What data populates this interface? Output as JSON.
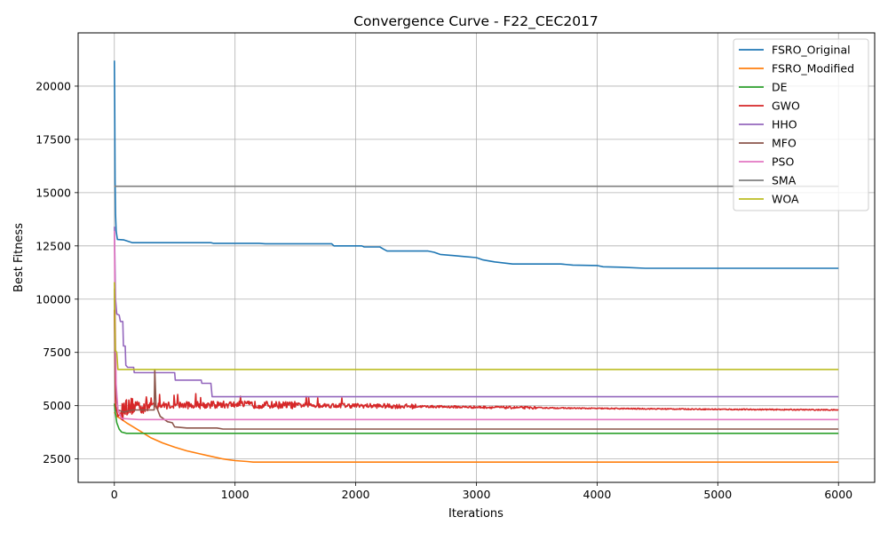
{
  "chart_data": {
    "type": "line",
    "title": "Convergence Curve - F22_CEC2017",
    "xlabel": "Iterations",
    "ylabel": "Best Fitness",
    "xlim": [
      -300,
      6300
    ],
    "ylim": [
      1400,
      22500
    ],
    "xticks": [
      0,
      1000,
      2000,
      3000,
      4000,
      5000,
      6000
    ],
    "yticks": [
      2500,
      5000,
      7500,
      10000,
      12500,
      15000,
      17500,
      20000
    ],
    "grid": true,
    "legend_position": "top-right",
    "series": [
      {
        "name": "FSRO_Original",
        "color": "#1f77b4",
        "noise": 0,
        "points": [
          [
            0,
            21200
          ],
          [
            3,
            19000
          ],
          [
            6,
            15500
          ],
          [
            10,
            14000
          ],
          [
            15,
            13200
          ],
          [
            25,
            12800
          ],
          [
            80,
            12780
          ],
          [
            150,
            12650
          ],
          [
            800,
            12650
          ],
          [
            820,
            12620
          ],
          [
            1200,
            12620
          ],
          [
            1250,
            12600
          ],
          [
            1800,
            12600
          ],
          [
            1820,
            12500
          ],
          [
            2050,
            12500
          ],
          [
            2070,
            12450
          ],
          [
            2200,
            12450
          ],
          [
            2230,
            12350
          ],
          [
            2260,
            12260
          ],
          [
            2600,
            12260
          ],
          [
            2650,
            12200
          ],
          [
            2700,
            12100
          ],
          [
            2800,
            12050
          ],
          [
            2900,
            12000
          ],
          [
            3000,
            11950
          ],
          [
            3050,
            11850
          ],
          [
            3150,
            11750
          ],
          [
            3300,
            11650
          ],
          [
            3700,
            11650
          ],
          [
            3800,
            11600
          ],
          [
            4000,
            11580
          ],
          [
            4050,
            11520
          ],
          [
            4200,
            11500
          ],
          [
            4400,
            11450
          ],
          [
            6000,
            11450
          ]
        ]
      },
      {
        "name": "FSRO_Modified",
        "color": "#ff7f0e",
        "noise": 0,
        "points": [
          [
            0,
            4700
          ],
          [
            20,
            4500
          ],
          [
            50,
            4400
          ],
          [
            100,
            4200
          ],
          [
            200,
            3850
          ],
          [
            300,
            3500
          ],
          [
            400,
            3250
          ],
          [
            500,
            3050
          ],
          [
            600,
            2880
          ],
          [
            700,
            2750
          ],
          [
            800,
            2620
          ],
          [
            900,
            2500
          ],
          [
            1000,
            2420
          ],
          [
            1100,
            2380
          ],
          [
            1150,
            2350
          ],
          [
            6000,
            2350
          ]
        ]
      },
      {
        "name": "DE",
        "color": "#2ca02c",
        "noise": 0,
        "points": [
          [
            0,
            5100
          ],
          [
            10,
            4600
          ],
          [
            20,
            4200
          ],
          [
            40,
            3900
          ],
          [
            60,
            3760
          ],
          [
            100,
            3700
          ],
          [
            6000,
            3700
          ]
        ]
      },
      {
        "name": "GWO",
        "color": "#d62728",
        "noise": 1,
        "points": [
          [
            0,
            9500
          ],
          [
            10,
            5000
          ],
          [
            30,
            4500
          ],
          [
            60,
            4700
          ],
          [
            150,
            5000
          ],
          [
            1000,
            5050
          ],
          [
            2000,
            5000
          ],
          [
            3000,
            4930
          ],
          [
            4000,
            4870
          ],
          [
            5000,
            4830
          ],
          [
            6000,
            4800
          ]
        ]
      },
      {
        "name": "HHO",
        "color": "#9467bd",
        "noise": 0,
        "points": [
          [
            0,
            13400
          ],
          [
            10,
            10000
          ],
          [
            20,
            9300
          ],
          [
            40,
            9250
          ],
          [
            50,
            8950
          ],
          [
            70,
            8950
          ],
          [
            75,
            7800
          ],
          [
            90,
            7800
          ],
          [
            95,
            6900
          ],
          [
            110,
            6800
          ],
          [
            160,
            6800
          ],
          [
            165,
            6550
          ],
          [
            500,
            6550
          ],
          [
            505,
            6200
          ],
          [
            720,
            6200
          ],
          [
            725,
            6050
          ],
          [
            800,
            6050
          ],
          [
            810,
            5420
          ],
          [
            6000,
            5420
          ]
        ]
      },
      {
        "name": "MFO",
        "color": "#8c564b",
        "noise": 0,
        "points": [
          [
            0,
            10500
          ],
          [
            5,
            7500
          ],
          [
            15,
            5500
          ],
          [
            30,
            4800
          ],
          [
            80,
            4700
          ],
          [
            150,
            4800
          ],
          [
            330,
            4800
          ],
          [
            335,
            6700
          ],
          [
            345,
            5000
          ],
          [
            380,
            4500
          ],
          [
            440,
            4250
          ],
          [
            480,
            4200
          ],
          [
            500,
            4000
          ],
          [
            600,
            3950
          ],
          [
            850,
            3950
          ],
          [
            900,
            3900
          ],
          [
            6000,
            3900
          ]
        ]
      },
      {
        "name": "PSO",
        "color": "#e377c2",
        "noise": 0,
        "points": [
          [
            0,
            13200
          ],
          [
            5,
            10000
          ],
          [
            15,
            6000
          ],
          [
            30,
            4800
          ],
          [
            60,
            4400
          ],
          [
            200,
            4350
          ],
          [
            6000,
            4350
          ]
        ]
      },
      {
        "name": "SMA",
        "color": "#7f7f7f",
        "noise": 0,
        "points": [
          [
            0,
            15300
          ],
          [
            6000,
            15300
          ]
        ]
      },
      {
        "name": "WOA",
        "color": "#bcbd22",
        "noise": 0,
        "points": [
          [
            0,
            10800
          ],
          [
            8,
            7600
          ],
          [
            20,
            7500
          ],
          [
            30,
            6700
          ],
          [
            6000,
            6700
          ]
        ]
      }
    ]
  }
}
